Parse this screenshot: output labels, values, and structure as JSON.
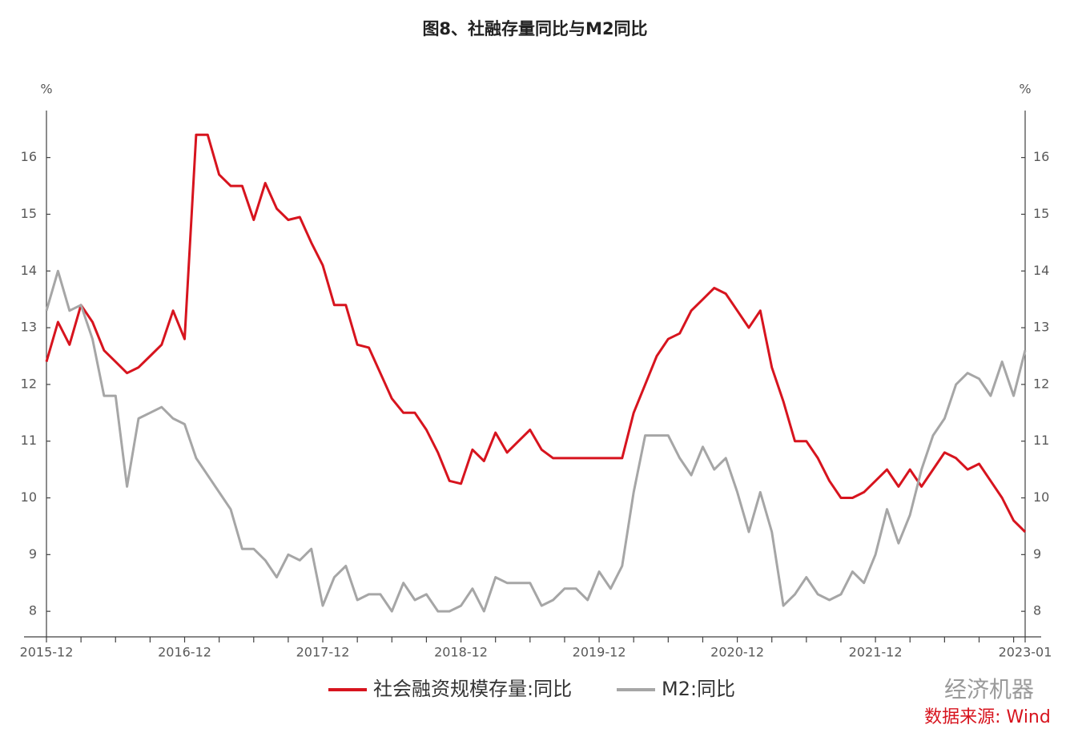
{
  "chart_data": {
    "type": "line",
    "title": "图8、社融存量同比与M2同比",
    "y_label": "%",
    "y2_label": "%",
    "categories": [
      "2015-12",
      null,
      null,
      null,
      null,
      null,
      null,
      null,
      null,
      null,
      null,
      null,
      "2016-12",
      null,
      null,
      null,
      null,
      null,
      null,
      null,
      null,
      null,
      null,
      null,
      "2017-12",
      null,
      null,
      null,
      null,
      null,
      null,
      null,
      null,
      null,
      null,
      null,
      "2018-12",
      null,
      null,
      null,
      null,
      null,
      null,
      null,
      null,
      null,
      null,
      null,
      "2019-12",
      null,
      null,
      null,
      null,
      null,
      null,
      null,
      null,
      null,
      null,
      null,
      "2020-12",
      null,
      null,
      null,
      null,
      null,
      null,
      null,
      null,
      null,
      null,
      null,
      "2021-12",
      null,
      null,
      null,
      null,
      null,
      null,
      null,
      null,
      null,
      null,
      null,
      null,
      "2023-01"
    ],
    "series": [
      {
        "name": "社会融资规模存量:同比",
        "color": "#d7141e",
        "values": [
          12.4,
          13.1,
          12.7,
          13.4,
          13.1,
          12.6,
          12.4,
          12.2,
          12.3,
          12.5,
          12.7,
          13.3,
          12.8,
          16.4,
          16.4,
          15.7,
          15.5,
          15.5,
          14.9,
          15.55,
          15.1,
          14.9,
          14.95,
          14.5,
          14.1,
          13.4,
          13.4,
          12.7,
          12.65,
          12.2,
          11.75,
          11.5,
          11.5,
          11.2,
          10.8,
          10.3,
          10.25,
          10.85,
          10.65,
          11.15,
          10.8,
          11.0,
          11.2,
          10.85,
          10.7,
          10.7,
          10.7,
          10.7,
          10.7,
          10.7,
          10.7,
          11.5,
          12.0,
          12.5,
          12.8,
          12.9,
          13.3,
          13.5,
          13.7,
          13.6,
          13.3,
          13.0,
          13.3,
          12.3,
          11.7,
          11.0,
          11.0,
          10.7,
          10.3,
          10.0,
          10.0,
          10.1,
          10.3,
          10.5,
          10.2,
          10.5,
          10.2,
          10.5,
          10.8,
          10.7,
          10.5,
          10.6,
          10.3,
          10.0,
          9.6,
          9.4
        ]
      },
      {
        "name": "M2:同比",
        "color": "#a6a6a6",
        "values": [
          13.3,
          14.0,
          13.3,
          13.4,
          12.8,
          11.8,
          11.8,
          10.2,
          11.4,
          11.5,
          11.6,
          11.4,
          11.3,
          10.7,
          10.4,
          10.1,
          9.8,
          9.1,
          9.1,
          8.9,
          8.6,
          9.0,
          8.9,
          9.1,
          8.1,
          8.6,
          8.8,
          8.2,
          8.3,
          8.3,
          8.0,
          8.5,
          8.2,
          8.3,
          8.0,
          8.0,
          8.1,
          8.4,
          8.0,
          8.6,
          8.5,
          8.5,
          8.5,
          8.1,
          8.2,
          8.4,
          8.4,
          8.2,
          8.7,
          8.4,
          8.8,
          10.1,
          11.1,
          11.1,
          11.1,
          10.7,
          10.4,
          10.9,
          10.5,
          10.7,
          10.1,
          9.4,
          10.1,
          9.4,
          8.1,
          8.3,
          8.6,
          8.3,
          8.2,
          8.3,
          8.7,
          8.5,
          9.0,
          9.8,
          9.2,
          9.7,
          10.5,
          11.1,
          11.4,
          12.0,
          12.2,
          12.1,
          11.8,
          12.4,
          11.8,
          12.6
        ]
      }
    ],
    "ylim": [
      7.55,
      16.8
    ],
    "yticks": [
      8,
      9,
      10,
      11,
      12,
      13,
      14,
      15,
      16
    ],
    "y2lim": [
      7.55,
      16.8
    ],
    "y2ticks": [
      8,
      9,
      10,
      11,
      12,
      13,
      14,
      15,
      16
    ],
    "grid": false,
    "legend": "bottom",
    "watermark": "经济机器",
    "source": "数据来源: Wind"
  }
}
